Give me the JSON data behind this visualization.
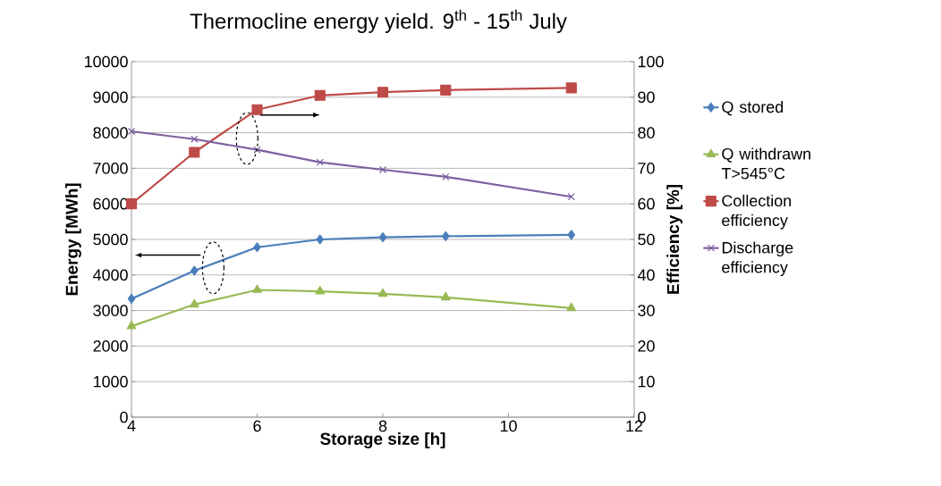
{
  "chart_data": {
    "type": "line",
    "title": "Thermocline energy yield. 9$^{th}$ - 15$^{th}$ July",
    "xlabel": "Storage size [h]",
    "ylabel": "Energy [MWh]",
    "y2label": "Efficiency [%]",
    "x": [
      4,
      5,
      6,
      7,
      8,
      9,
      11
    ],
    "xlim": [
      4,
      12
    ],
    "xticks": [
      4,
      6,
      8,
      10,
      12
    ],
    "ylim": [
      0,
      10000
    ],
    "yticks": [
      0,
      1000,
      2000,
      3000,
      4000,
      5000,
      6000,
      7000,
      8000,
      9000,
      10000
    ],
    "y2lim": [
      0,
      100
    ],
    "y2ticks": [
      0,
      10,
      20,
      30,
      40,
      50,
      60,
      70,
      80,
      90,
      100
    ],
    "grid": "y",
    "legend": "right",
    "series": [
      {
        "name": "Q stored",
        "color": "#4a7ebb",
        "marker": "diamond",
        "values": [
          3330,
          4120,
          4780,
          5000,
          5060,
          5090,
          5130
        ]
      },
      {
        "name": "Q withdrawn T>545°C",
        "color": "#98b954",
        "marker": "triangle",
        "values": [
          2560,
          3170,
          3580,
          3540,
          3470,
          3370,
          3070
        ]
      },
      {
        "name": "Collection efficiency",
        "color": "#be4b48",
        "marker": "square",
        "axis": "y2",
        "values": [
          60,
          74.5,
          86.5,
          90.5,
          91.4,
          92,
          92.6
        ]
      },
      {
        "name": "Discharge efficiency",
        "color": "#7d60a0",
        "marker": "cross",
        "axis": "y2",
        "values": [
          80.4,
          78.2,
          75.2,
          71.7,
          69.6,
          67.6,
          62.0
        ]
      }
    ]
  }
}
